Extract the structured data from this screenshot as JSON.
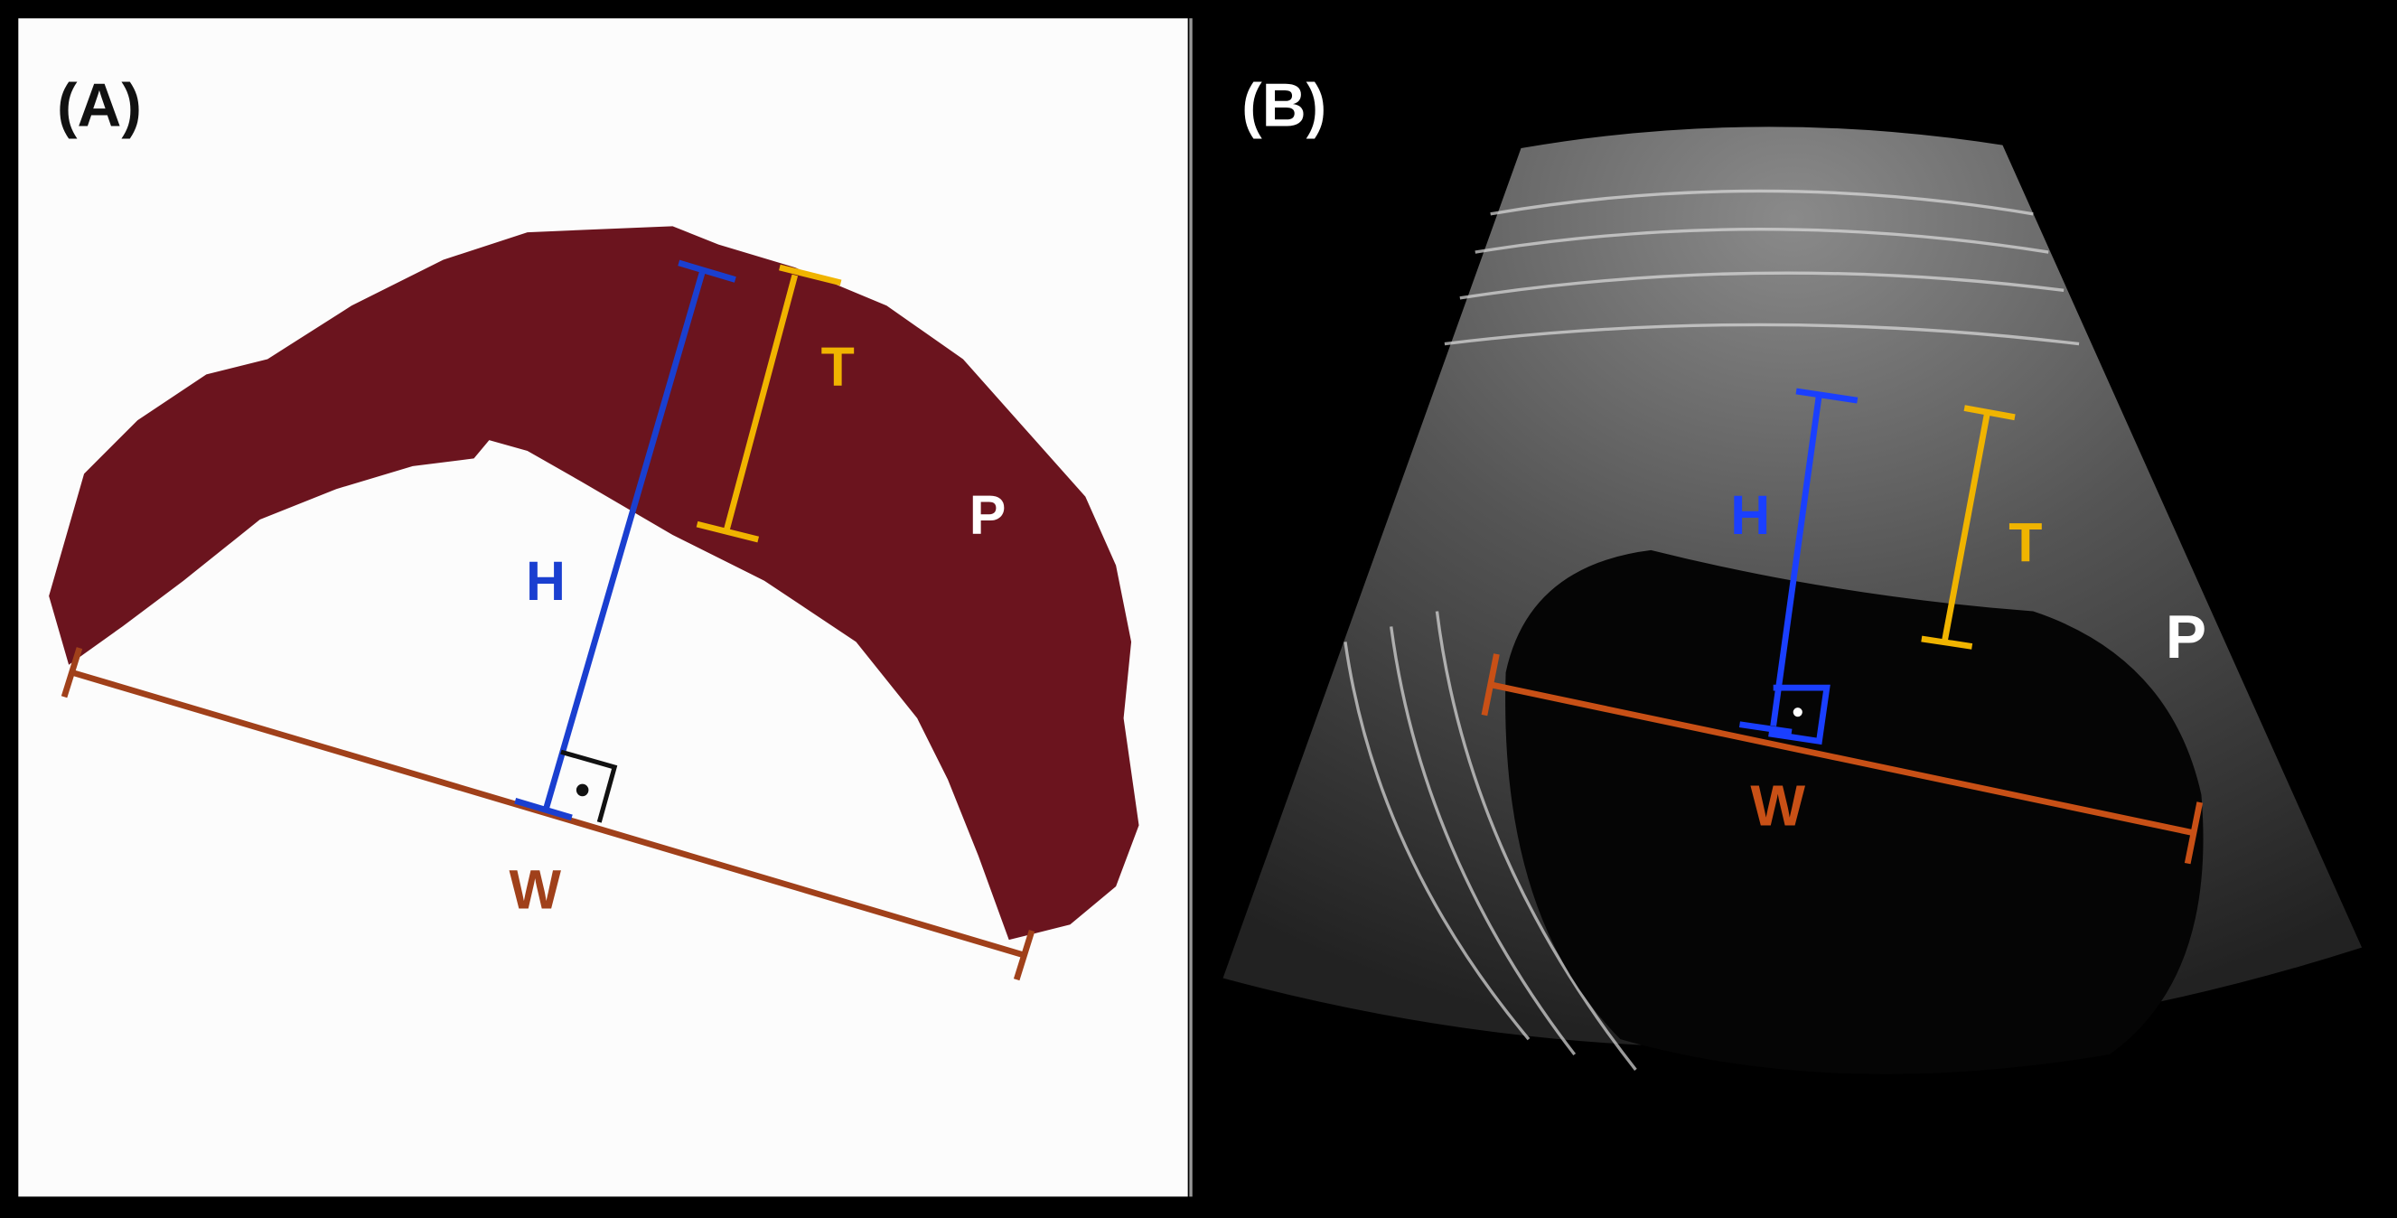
{
  "panels": [
    {
      "label": "(A)",
      "markers": [
        "H",
        "T",
        "P",
        "W"
      ]
    },
    {
      "label": "(B)",
      "markers": [
        "H",
        "T",
        "P",
        "W"
      ]
    }
  ]
}
